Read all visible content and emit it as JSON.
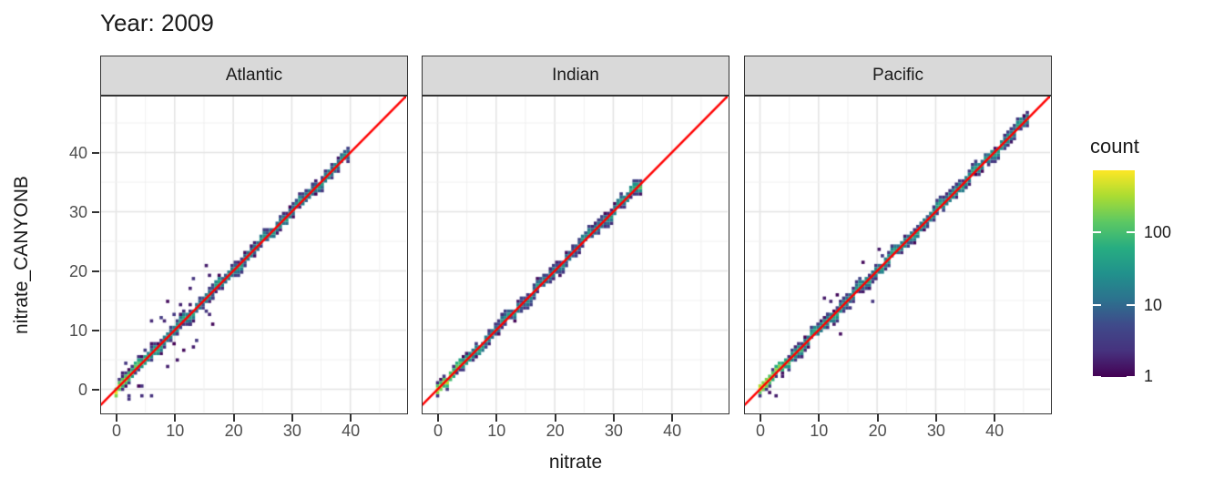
{
  "title": "Year: 2009",
  "axes": {
    "x_title": "nitrate",
    "y_title": "nitrate_CANYONB",
    "x_tick_values": [
      0,
      10,
      20,
      30,
      40
    ],
    "y_tick_values": [
      0,
      10,
      20,
      30,
      40
    ]
  },
  "facets": [
    "Atlantic",
    "Indian",
    "Pacific"
  ],
  "legend": {
    "title": "count",
    "tick_labels": [
      "100",
      "10",
      "1"
    ],
    "tick_values": [
      100,
      10,
      1
    ],
    "scale": "log10",
    "max_count": 730
  },
  "colors": {
    "identity_line": "#ff0000",
    "strip_fill": "#d9d9d9",
    "panel_border": "#333333",
    "grid_major": "#e4e4e4",
    "grid_minor": "#f0f0f0",
    "tick_text": "#4d4d4d",
    "viridis_stops": [
      "#440154",
      "#46327e",
      "#3f4a8a",
      "#2c728e",
      "#21918c",
      "#27ad81",
      "#5cc863",
      "#aadc32",
      "#fde725"
    ]
  },
  "chart_data": {
    "type": "heatmap",
    "description": "Faceted 2D-binned scatter (geom_bin2d style) of predicted nitrate_CANYONB vs observed nitrate for year 2009; dense viridis-coloured band along the red y=x identity line in each ocean-basin facet.",
    "x_range": [
      -2.8,
      49.6
    ],
    "y_range": [
      -4.2,
      49.5
    ],
    "bin_size": 0.55,
    "identity_line": {
      "slope": 1,
      "intercept": 0,
      "color": "#ff0000"
    },
    "count_scale": {
      "type": "log10",
      "min": 1,
      "max": 730,
      "palette": "viridis"
    },
    "panels": [
      {
        "name": "Atlantic",
        "seed": 11,
        "max_value": 40,
        "peak_count": 520,
        "band_count": 46,
        "outlier_rate": 2.0,
        "outlier_spread": 6.0,
        "scatter_zone_max": 18,
        "end_boost": 0
      },
      {
        "name": "Indian",
        "seed": 23,
        "max_value": 35,
        "peak_count": 620,
        "band_count": 30,
        "outlier_rate": 0.5,
        "outlier_spread": 1.8,
        "scatter_zone_max": 12,
        "end_boost": 130
      },
      {
        "name": "Pacific",
        "seed": 37,
        "max_value": 46,
        "peak_count": 700,
        "band_count": 52,
        "outlier_rate": 1.1,
        "outlier_spread": 3.2,
        "scatter_zone_max": 22,
        "end_boost": 0
      }
    ]
  }
}
